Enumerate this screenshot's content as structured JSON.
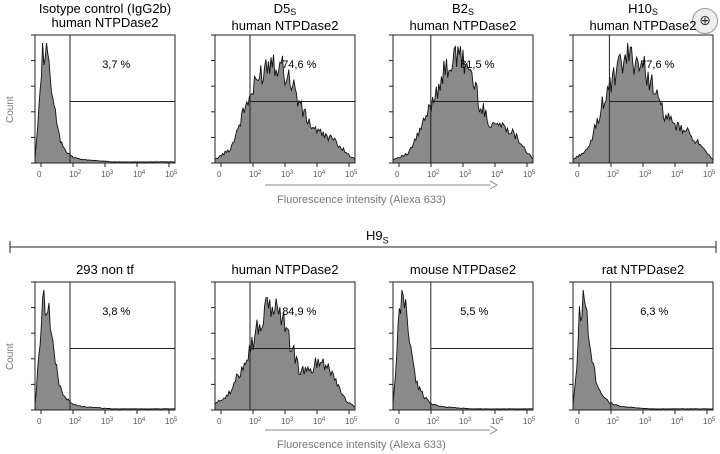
{
  "zoom_icon": "zoom-in-icon",
  "group_label": {
    "main": "H9",
    "sub": "S"
  },
  "x_axis_label": "Fluorescence intensity (Alexa 633)",
  "y_axis_label": "Count",
  "tick_labels": [
    "0",
    "10",
    "2",
    "10",
    "3",
    "10",
    "4",
    "10",
    "5"
  ],
  "chart_data": [
    {
      "type": "area",
      "row": 0,
      "title_line1": "Isotype control (IgG2b)",
      "title_line1_sub": "",
      "title_line2": "human NTPDase2",
      "percent": "3,7 %",
      "x_scale": "log",
      "ylabel": "Count",
      "x": [
        0.5,
        0.6,
        0.7,
        0.8,
        0.9,
        1.0,
        1.1,
        1.2,
        1.3,
        1.5,
        1.7,
        2.0,
        2.5,
        3.0,
        3.5,
        4.0,
        4.5,
        5.0
      ],
      "values": [
        0.05,
        0.4,
        0.85,
        0.97,
        0.9,
        0.72,
        0.5,
        0.32,
        0.2,
        0.1,
        0.05,
        0.03,
        0.02,
        0.01,
        0.01,
        0.01,
        0.01,
        0.01
      ]
    },
    {
      "type": "area",
      "row": 0,
      "title_line1": "D5",
      "title_line1_sub": "S",
      "title_line2": "human NTPDase2",
      "percent": "74,6 %",
      "x_scale": "log",
      "ylabel": "",
      "x": [
        0.5,
        1.0,
        1.5,
        2.0,
        2.3,
        2.6,
        3.0,
        3.3,
        3.6,
        3.9,
        4.2,
        4.5,
        4.8,
        5.0
      ],
      "values": [
        0.03,
        0.12,
        0.5,
        0.78,
        0.9,
        0.85,
        0.68,
        0.45,
        0.32,
        0.25,
        0.22,
        0.15,
        0.07,
        0.03
      ]
    },
    {
      "type": "area",
      "row": 0,
      "title_line1": "B2",
      "title_line1_sub": "S",
      "title_line2": "human NTPDase2",
      "percent": "81,5 %",
      "x_scale": "log",
      "ylabel": "",
      "x": [
        0.5,
        1.0,
        1.5,
        2.0,
        2.4,
        2.7,
        3.0,
        3.3,
        3.6,
        3.9,
        4.2,
        4.5,
        4.8,
        5.0
      ],
      "values": [
        0.03,
        0.08,
        0.35,
        0.7,
        0.88,
        0.9,
        0.78,
        0.5,
        0.35,
        0.33,
        0.3,
        0.22,
        0.1,
        0.03
      ]
    },
    {
      "type": "area",
      "row": 0,
      "title_line1": "H10",
      "title_line1_sub": "S",
      "title_line2": "human NTPDase2",
      "percent": "77,6 %",
      "x_scale": "log",
      "ylabel": "",
      "x": [
        0.5,
        1.0,
        1.5,
        2.0,
        2.3,
        2.6,
        3.0,
        3.3,
        3.6,
        3.9,
        4.2,
        4.5,
        4.8,
        5.0
      ],
      "values": [
        0.03,
        0.12,
        0.55,
        0.82,
        0.92,
        0.88,
        0.72,
        0.48,
        0.36,
        0.3,
        0.26,
        0.18,
        0.08,
        0.03
      ]
    },
    {
      "type": "area",
      "row": 1,
      "title_line1": "293 non tf",
      "title_line1_sub": "",
      "title_line2": "",
      "percent": "3,8 %",
      "x_scale": "log",
      "ylabel": "Count",
      "x": [
        0.5,
        0.6,
        0.7,
        0.8,
        0.9,
        1.0,
        1.1,
        1.2,
        1.3,
        1.5,
        1.7,
        2.0,
        2.5,
        3.0,
        3.5,
        4.0,
        4.5,
        5.0
      ],
      "values": [
        0.05,
        0.35,
        0.8,
        0.97,
        0.92,
        0.75,
        0.52,
        0.33,
        0.2,
        0.1,
        0.05,
        0.03,
        0.02,
        0.01,
        0.01,
        0.01,
        0.01,
        0.01
      ]
    },
    {
      "type": "area",
      "row": 1,
      "title_line1": "human NTPDase2",
      "title_line1_sub": "",
      "title_line2": "",
      "percent": "84,9 %",
      "x_scale": "log",
      "ylabel": "",
      "x": [
        0.5,
        1.0,
        1.5,
        2.0,
        2.3,
        2.6,
        2.9,
        3.2,
        3.5,
        3.8,
        4.1,
        4.4,
        4.7,
        5.0
      ],
      "values": [
        0.05,
        0.15,
        0.45,
        0.78,
        0.9,
        0.85,
        0.6,
        0.35,
        0.32,
        0.42,
        0.4,
        0.25,
        0.08,
        0.03
      ]
    },
    {
      "type": "area",
      "row": 1,
      "title_line1": "mouse NTPDase2",
      "title_line1_sub": "",
      "title_line2": "",
      "percent": "5,5 %",
      "x_scale": "log",
      "ylabel": "",
      "x": [
        0.5,
        0.6,
        0.7,
        0.8,
        0.9,
        1.0,
        1.1,
        1.2,
        1.3,
        1.5,
        1.7,
        2.0,
        2.5,
        3.0,
        3.5,
        4.0,
        4.5,
        5.0
      ],
      "values": [
        0.05,
        0.35,
        0.82,
        0.98,
        0.9,
        0.7,
        0.48,
        0.3,
        0.2,
        0.12,
        0.06,
        0.03,
        0.02,
        0.01,
        0.01,
        0.01,
        0.01,
        0.01
      ]
    },
    {
      "type": "area",
      "row": 1,
      "title_line1": "rat NTPDase2",
      "title_line1_sub": "",
      "title_line2": "",
      "percent": "6,3 %",
      "x_scale": "log",
      "ylabel": "",
      "x": [
        0.5,
        0.6,
        0.7,
        0.8,
        0.9,
        1.0,
        1.1,
        1.2,
        1.3,
        1.5,
        1.7,
        2.0,
        2.5,
        3.0,
        3.5,
        4.0,
        4.5,
        5.0
      ],
      "values": [
        0.05,
        0.3,
        0.78,
        0.95,
        0.92,
        0.72,
        0.5,
        0.32,
        0.2,
        0.12,
        0.06,
        0.03,
        0.02,
        0.01,
        0.01,
        0.01,
        0.01,
        0.01
      ]
    }
  ]
}
